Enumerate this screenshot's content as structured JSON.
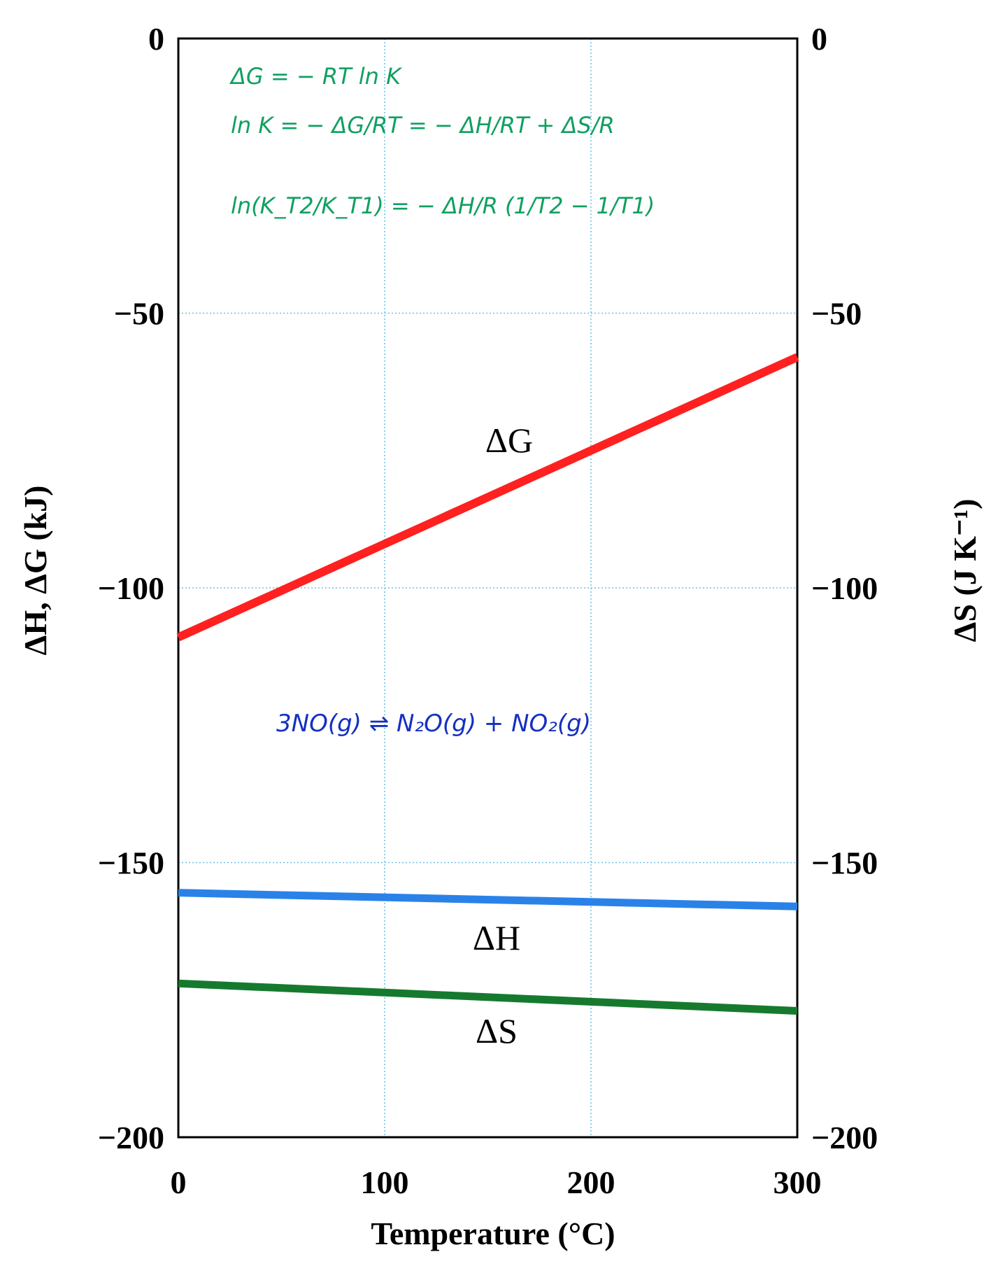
{
  "chart_data": {
    "type": "line",
    "xlabel": "Temperature (°C)",
    "ylabel_left": "ΔH, ΔG (kJ)",
    "ylabel_right": "ΔS (J K⁻¹)",
    "xlim": [
      0,
      300
    ],
    "ylim": [
      -200,
      0
    ],
    "x_ticks": [
      "0",
      "100",
      "200",
      "300"
    ],
    "y_ticks_left": [
      "0",
      "−50",
      "−100",
      "−150",
      "−200"
    ],
    "y_ticks_right": [
      "0",
      "−50",
      "−100",
      "−150",
      "−200"
    ],
    "grid": true,
    "series": [
      {
        "name": "ΔG",
        "axis": "left",
        "color": "#ff2020",
        "x": [
          0,
          300
        ],
        "y": [
          -109,
          -58
        ]
      },
      {
        "name": "ΔH",
        "axis": "left",
        "color": "#2a82e8",
        "x": [
          0,
          300
        ],
        "y": [
          -155.5,
          -158
        ]
      },
      {
        "name": "ΔS",
        "axis": "right",
        "color": "#167a2e",
        "x": [
          0,
          300
        ],
        "y": [
          -172,
          -177
        ]
      }
    ],
    "annotations": {
      "equations": [
        "ΔG = − RT ln K",
        "ln K = − ΔG/RT = − ΔH/RT + ΔS/R",
        "ln(K_T2/K_T1) = − ΔH/R (1/T2 − 1/T1)"
      ],
      "reaction": "3NO(g) ⇌ N₂O(g) + NO₂(g)"
    }
  }
}
